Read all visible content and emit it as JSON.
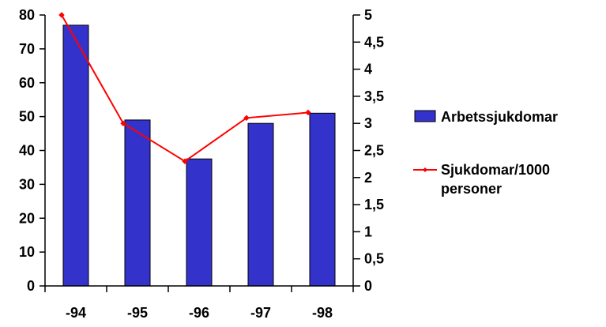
{
  "chart_data": {
    "type": "bar",
    "title": "",
    "xlabel": "",
    "categories": [
      "-94",
      "-95",
      "-96",
      "-97",
      "-98"
    ],
    "series": [
      {
        "name": "Arbetssjukdomar",
        "type": "bar",
        "axis": "left",
        "values": [
          77,
          49,
          37.5,
          48,
          51
        ],
        "color": "#3333cc"
      },
      {
        "name": "Sjukdomar/1000 personer",
        "type": "line",
        "axis": "right",
        "values": [
          5,
          3,
          2.3,
          3.1,
          3.2
        ],
        "color": "#ff0000"
      }
    ],
    "y_left": {
      "ylim": [
        0,
        80
      ],
      "ticks": [
        0,
        10,
        20,
        30,
        40,
        50,
        60,
        70,
        80
      ],
      "tick_labels": [
        "0",
        "10",
        "20",
        "30",
        "40",
        "50",
        "60",
        "70",
        "80"
      ]
    },
    "y_right": {
      "ylim": [
        0,
        5
      ],
      "ticks": [
        0,
        0.5,
        1,
        1.5,
        2,
        2.5,
        3,
        3.5,
        4,
        4.5,
        5
      ],
      "tick_labels": [
        "0",
        "0,5",
        "1",
        "1,5",
        "2",
        "2,5",
        "3",
        "3,5",
        "4",
        "4,5",
        "5"
      ]
    },
    "legend": {
      "placement": "right",
      "items": [
        {
          "lines": [
            "Arbetssjukdomar"
          ],
          "marker": "bar"
        },
        {
          "lines": [
            "Sjukdomar/1000",
            "personer"
          ],
          "marker": "line"
        }
      ]
    },
    "grid": false
  }
}
